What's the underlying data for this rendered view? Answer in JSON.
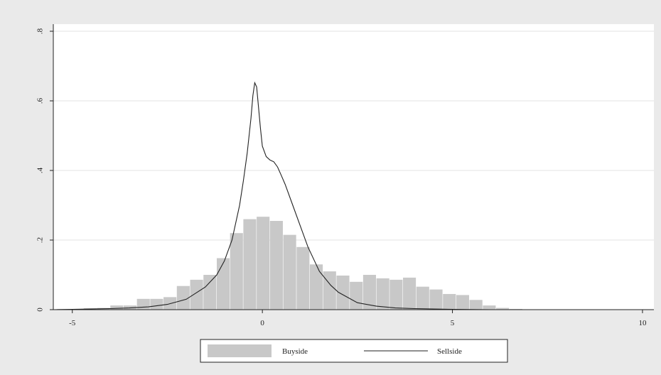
{
  "chart_data": {
    "type": "histogram",
    "xlim": [
      -5.5,
      10.3
    ],
    "ylim": [
      0,
      0.8
    ],
    "x_ticks": [
      -5,
      0,
      5,
      10
    ],
    "y_ticks": [
      0,
      0.2,
      0.4,
      0.6,
      0.8
    ],
    "x_tick_labels": [
      "-5",
      "0",
      "5",
      "10"
    ],
    "y_tick_labels": [
      "0",
      ".2",
      ".4",
      ".6",
      ".8"
    ],
    "grid": "horizontal",
    "legend_placement": "bottom",
    "series": [
      {
        "name": "Buyside",
        "kind": "histogram",
        "bin_width": 0.35,
        "bins_start": [
          -5.4,
          -5.05,
          -4.7,
          -4.35,
          -4.0,
          -3.65,
          -3.3,
          -2.95,
          -2.6,
          -2.25,
          -1.9,
          -1.55,
          -1.2,
          -0.85,
          -0.5,
          -0.15,
          0.2,
          0.55,
          0.9,
          1.25,
          1.6,
          1.95,
          2.3,
          2.65,
          3.0,
          3.35,
          3.7,
          4.05,
          4.4,
          4.75,
          5.1,
          5.45,
          5.8,
          6.15,
          6.5
        ],
        "values": [
          0.002,
          0.002,
          0.004,
          0.005,
          0.012,
          0.012,
          0.031,
          0.031,
          0.036,
          0.068,
          0.086,
          0.1,
          0.148,
          0.22,
          0.26,
          0.267,
          0.255,
          0.215,
          0.18,
          0.13,
          0.11,
          0.098,
          0.08,
          0.1,
          0.09,
          0.086,
          0.092,
          0.066,
          0.058,
          0.045,
          0.042,
          0.028,
          0.012,
          0.005,
          0.002
        ],
        "color": "#c8c8c8"
      },
      {
        "name": "Sellside",
        "kind": "line",
        "x": [
          -5.5,
          -5.0,
          -4.5,
          -4.0,
          -3.5,
          -3.0,
          -2.5,
          -2.0,
          -1.5,
          -1.2,
          -1.0,
          -0.8,
          -0.6,
          -0.5,
          -0.4,
          -0.3,
          -0.25,
          -0.2,
          -0.15,
          -0.1,
          -0.05,
          0.0,
          0.1,
          0.2,
          0.3,
          0.4,
          0.5,
          0.6,
          0.8,
          1.0,
          1.2,
          1.5,
          1.8,
          2.0,
          2.5,
          3.0,
          3.5,
          4.0,
          5.0,
          6.0
        ],
        "y": [
          0.0,
          0.001,
          0.002,
          0.003,
          0.005,
          0.008,
          0.015,
          0.03,
          0.065,
          0.1,
          0.14,
          0.2,
          0.3,
          0.37,
          0.45,
          0.55,
          0.615,
          0.652,
          0.64,
          0.58,
          0.52,
          0.47,
          0.44,
          0.43,
          0.425,
          0.41,
          0.385,
          0.36,
          0.3,
          0.24,
          0.18,
          0.11,
          0.07,
          0.05,
          0.02,
          0.01,
          0.005,
          0.003,
          0.001,
          0.0
        ],
        "color": "#222222"
      }
    ]
  }
}
